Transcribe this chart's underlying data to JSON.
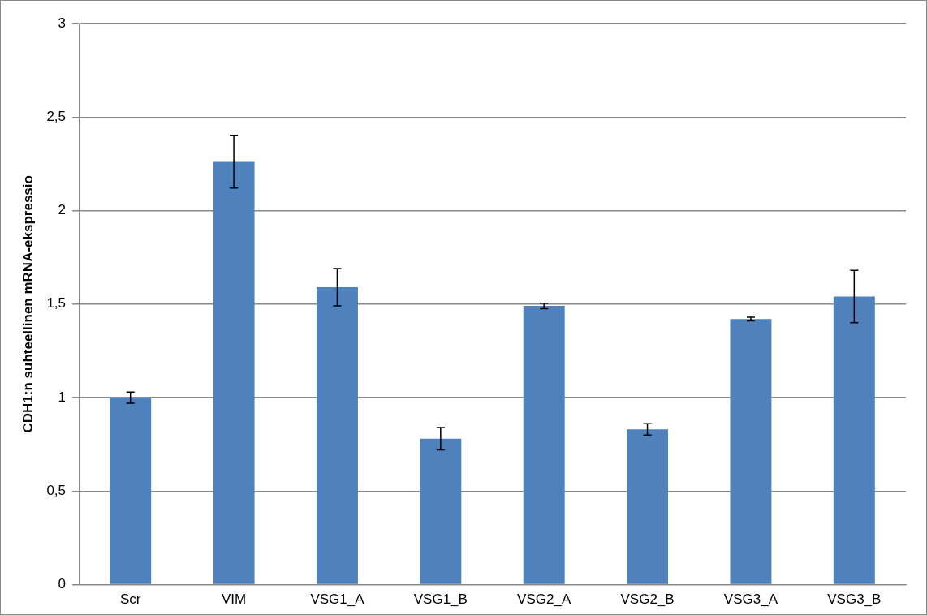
{
  "chart_data": {
    "type": "bar",
    "ylabel": "CDH1:n suhteellinen mRNA-ekspressio",
    "categories": [
      "Scr",
      "VIM",
      "VSG1_A",
      "VSG1_B",
      "VSG2_A",
      "VSG2_B",
      "VSG3_A",
      "VSG3_B"
    ],
    "values": [
      1.0,
      2.26,
      1.59,
      0.78,
      1.49,
      0.83,
      1.42,
      1.54
    ],
    "errors": [
      0.03,
      0.14,
      0.1,
      0.06,
      0.015,
      0.03,
      0.01,
      0.14
    ],
    "color": "#4f81bd",
    "ylim": [
      0,
      3
    ],
    "yticks": [
      {
        "value": 0,
        "label": "0"
      },
      {
        "value": 0.5,
        "label": "0,5"
      },
      {
        "value": 1,
        "label": "1"
      },
      {
        "value": 1.5,
        "label": "1,5"
      },
      {
        "value": 2,
        "label": "2"
      },
      {
        "value": 2.5,
        "label": "2,5"
      },
      {
        "value": 3,
        "label": "3"
      }
    ],
    "grid": "y",
    "legend": false
  }
}
